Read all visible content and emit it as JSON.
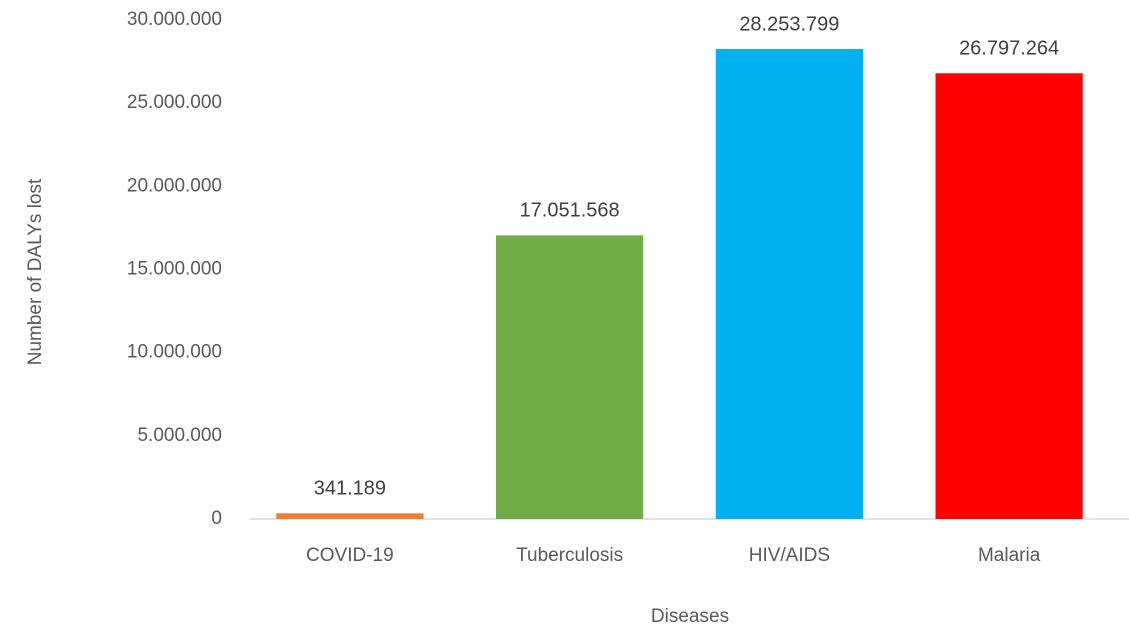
{
  "chart_data": {
    "type": "bar",
    "categories": [
      "COVID-19",
      "Tuberculosis",
      "HIV/AIDS",
      "Malaria"
    ],
    "values": [
      341189,
      17051568,
      28253799,
      26797264
    ],
    "value_labels": [
      "341.189",
      "17.051.568",
      "28.253.799",
      "26.797.264"
    ],
    "colors": [
      "#ed7d31",
      "#70ad47",
      "#00b0f0",
      "#ff0000"
    ],
    "xlabel": "Diseases",
    "ylabel": "Number  of DALYs lost",
    "ylim": [
      0,
      30000000
    ],
    "yticks": [
      0,
      {
        "value": 5000000,
        "label": "5.000.000"
      },
      {
        "value": 10000000,
        "label": "10.000.000"
      },
      {
        "value": 15000000,
        "label": "15.000.000"
      },
      {
        "value": 20000000,
        "label": "20.000.000"
      },
      {
        "value": 25000000,
        "label": "25.000.000"
      },
      {
        "value": 30000000,
        "label": "30.000.000"
      }
    ],
    "grid": false
  }
}
